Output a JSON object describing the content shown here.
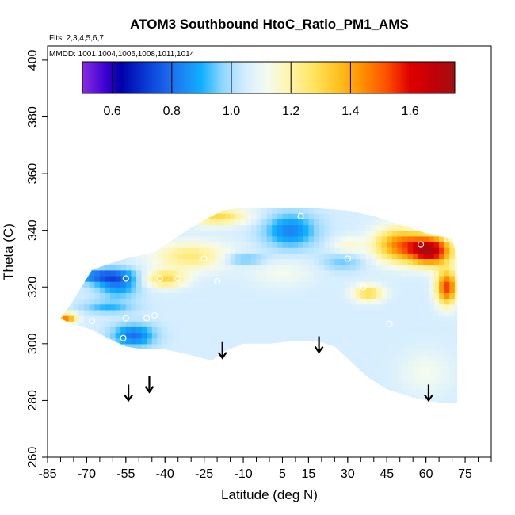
{
  "chart_data": {
    "type": "heatmap",
    "title": "ATOM3 Southbound HtoC_Ratio_PM1_AMS",
    "annotations": [
      "Flts: 2,3,4,5,6,7",
      "MMDD: 1001,1004,1006,1008,1011,1014"
    ],
    "xlabel": "Latitude (deg N)",
    "ylabel": "Theta (C)",
    "xlim": [
      -85,
      85
    ],
    "ylim": [
      260,
      405
    ],
    "x_ticks": [
      -85,
      -70,
      -55,
      -40,
      -25,
      -10,
      5,
      15,
      30,
      45,
      60,
      75
    ],
    "x_tick_labels": [
      "-85",
      "-70",
      "-55",
      "-40",
      "-25",
      "-10",
      "5",
      "15",
      "30",
      "45",
      "60",
      "75"
    ],
    "y_ticks": [
      260,
      280,
      300,
      320,
      340,
      360,
      380,
      400
    ],
    "y_tick_labels": [
      "260",
      "280",
      "300",
      "320",
      "340",
      "360",
      "380",
      "400"
    ],
    "colorbar": {
      "range": [
        0.5,
        1.75
      ],
      "ticks": [
        0.6,
        0.8,
        1.0,
        1.2,
        1.4,
        1.6
      ],
      "tick_labels": [
        "0.6",
        "0.8",
        "1.0",
        "1.2",
        "1.4",
        "1.6"
      ],
      "stops": [
        {
          "value": 0.5,
          "color": "#8a2be2"
        },
        {
          "value": 0.58,
          "color": "#3a00d0"
        },
        {
          "value": 0.63,
          "color": "#0000a8"
        },
        {
          "value": 0.72,
          "color": "#0a3fd8"
        },
        {
          "value": 0.8,
          "color": "#1e6ff0"
        },
        {
          "value": 0.9,
          "color": "#11b0ff"
        },
        {
          "value": 0.97,
          "color": "#8fd6ff"
        },
        {
          "value": 1.05,
          "color": "#d6eeff"
        },
        {
          "value": 1.12,
          "color": "#f4fbef"
        },
        {
          "value": 1.2,
          "color": "#fff4a8"
        },
        {
          "value": 1.28,
          "color": "#ffe35a"
        },
        {
          "value": 1.36,
          "color": "#ffc020"
        },
        {
          "value": 1.44,
          "color": "#ff9000"
        },
        {
          "value": 1.52,
          "color": "#ff5000"
        },
        {
          "value": 1.6,
          "color": "#e00000"
        },
        {
          "value": 1.68,
          "color": "#c00008"
        },
        {
          "value": 1.75,
          "color": "#a01010"
        }
      ]
    },
    "region_outline": [
      [
        -80,
        309
      ],
      [
        -76,
        314
      ],
      [
        -72,
        320
      ],
      [
        -68,
        326
      ],
      [
        -62,
        328
      ],
      [
        -55,
        330
      ],
      [
        -45,
        332
      ],
      [
        -38,
        336
      ],
      [
        -30,
        341
      ],
      [
        -22,
        345
      ],
      [
        -18,
        347
      ],
      [
        -10,
        348
      ],
      [
        5,
        348
      ],
      [
        15,
        348
      ],
      [
        30,
        347
      ],
      [
        40,
        345
      ],
      [
        50,
        342
      ],
      [
        60,
        339
      ],
      [
        70,
        337
      ],
      [
        72,
        330
      ],
      [
        72,
        296
      ],
      [
        72,
        279
      ],
      [
        65,
        279
      ],
      [
        55,
        281
      ],
      [
        45,
        284
      ],
      [
        38,
        288
      ],
      [
        32,
        293
      ],
      [
        25,
        299
      ],
      [
        18,
        301
      ],
      [
        10,
        301
      ],
      [
        0,
        300
      ],
      [
        -10,
        300
      ],
      [
        -18,
        297
      ],
      [
        -22,
        294
      ],
      [
        -30,
        296
      ],
      [
        -40,
        298
      ],
      [
        -48,
        298
      ],
      [
        -55,
        299
      ],
      [
        -62,
        302
      ],
      [
        -68,
        305
      ],
      [
        -76,
        307
      ],
      [
        -80,
        309
      ]
    ],
    "base_value": 1.05,
    "features": [
      {
        "lat": -65,
        "theta": 324,
        "value": 0.82,
        "rlat": 12,
        "rtheta": 2.5
      },
      {
        "lat": -58,
        "theta": 321,
        "value": 0.85,
        "rlat": 8,
        "rtheta": 5
      },
      {
        "lat": -52,
        "theta": 303,
        "value": 0.8,
        "rlat": 8,
        "rtheta": 4
      },
      {
        "lat": -62,
        "theta": 313,
        "value": 0.92,
        "rlat": 10,
        "rtheta": 2
      },
      {
        "lat": -40,
        "theta": 323,
        "value": 1.3,
        "rlat": 8,
        "rtheta": 3
      },
      {
        "lat": -30,
        "theta": 331,
        "value": 1.25,
        "rlat": 15,
        "rtheta": 5
      },
      {
        "lat": -78,
        "theta": 309,
        "value": 1.45,
        "rlat": 4,
        "rtheta": 2
      },
      {
        "lat": -20,
        "theta": 345,
        "value": 1.3,
        "rlat": 12,
        "rtheta": 3
      },
      {
        "lat": 8,
        "theta": 340,
        "value": 0.83,
        "rlat": 10,
        "rtheta": 6
      },
      {
        "lat": 28,
        "theta": 329,
        "value": 0.95,
        "rlat": 8,
        "rtheta": 3
      },
      {
        "lat": 50,
        "theta": 335,
        "value": 1.45,
        "rlat": 10,
        "rtheta": 6
      },
      {
        "lat": 62,
        "theta": 333,
        "value": 1.65,
        "rlat": 8,
        "rtheta": 5
      },
      {
        "lat": 68,
        "theta": 320,
        "value": 1.55,
        "rlat": 4,
        "rtheta": 6
      },
      {
        "lat": 38,
        "theta": 318,
        "value": 1.3,
        "rlat": 6,
        "rtheta": 3
      },
      {
        "lat": 30,
        "theta": 335,
        "value": 1.15,
        "rlat": 6,
        "rtheta": 3
      },
      {
        "lat": -10,
        "theta": 330,
        "value": 0.9,
        "rlat": 8,
        "rtheta": 2
      },
      {
        "lat": 5,
        "theta": 325,
        "value": 1.12,
        "rlat": 12,
        "rtheta": 5
      },
      {
        "lat": 60,
        "theta": 290,
        "value": 1.12,
        "rlat": 10,
        "rtheta": 8
      }
    ],
    "sample_points": [
      {
        "lat": -68,
        "theta": 308
      },
      {
        "lat": -55,
        "theta": 323
      },
      {
        "lat": -55,
        "theta": 309
      },
      {
        "lat": -56,
        "theta": 302
      },
      {
        "lat": -47,
        "theta": 309
      },
      {
        "lat": -44,
        "theta": 310
      },
      {
        "lat": -42,
        "theta": 323
      },
      {
        "lat": -35,
        "theta": 323
      },
      {
        "lat": -25,
        "theta": 330
      },
      {
        "lat": -20,
        "theta": 322
      },
      {
        "lat": 12,
        "theta": 345
      },
      {
        "lat": 30,
        "theta": 330
      },
      {
        "lat": 36,
        "theta": 320
      },
      {
        "lat": 46,
        "theta": 307
      },
      {
        "lat": 58,
        "theta": 335
      },
      {
        "lat": 68,
        "theta": 337
      }
    ],
    "arrows": [
      {
        "lat": -54,
        "theta": 280
      },
      {
        "lat": -46,
        "theta": 283
      },
      {
        "lat": -18,
        "theta": 295
      },
      {
        "lat": 19,
        "theta": 297
      },
      {
        "lat": 61,
        "theta": 280
      }
    ]
  }
}
